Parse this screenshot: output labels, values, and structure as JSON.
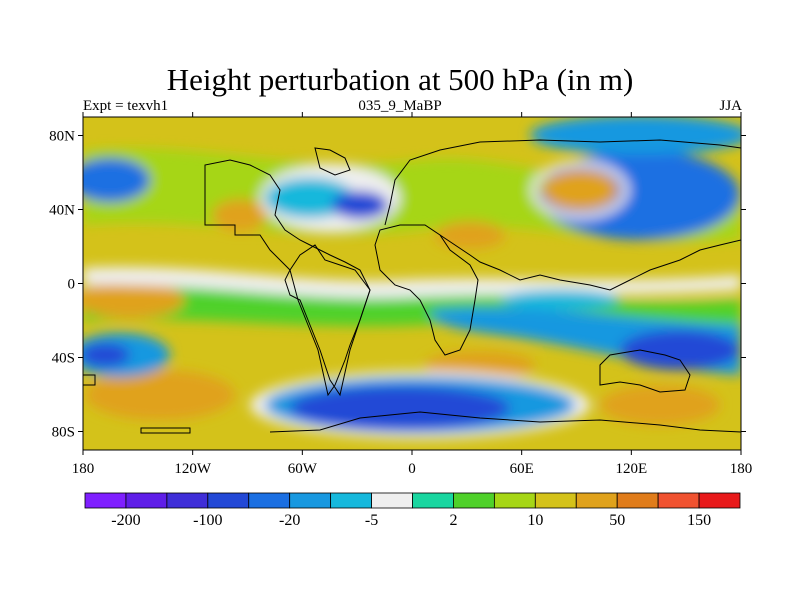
{
  "figure": {
    "title": "Height perturbation at 500 hPa (in m)",
    "left_label": "Expt = texvh1",
    "center_label": "035_9_MaBP",
    "right_label": "JJA"
  },
  "axes": {
    "lat_labels": [
      "80N",
      "40N",
      "0",
      "40S",
      "80S"
    ],
    "lon_labels": [
      "180",
      "120W",
      "60W",
      "0",
      "60E",
      "120E",
      "180"
    ]
  },
  "colorbar": {
    "colors": [
      "#7f1fff",
      "#5f1ee8",
      "#3f2ed8",
      "#2248d6",
      "#1b6fe2",
      "#1898e0",
      "#16b8dc",
      "#efefef",
      "#19d6a0",
      "#4fd12a",
      "#a6d616",
      "#d4c21a",
      "#e0a21c",
      "#e07c1a",
      "#f05230",
      "#e8191a"
    ],
    "labels": [
      "-200",
      "-100",
      "-20",
      "-5",
      "2",
      "10",
      "50",
      "150"
    ]
  },
  "chart_data": {
    "type": "heatmap",
    "title": "Height perturbation at 500 hPa (in m)",
    "subtitle": "035_9_MaBP",
    "x_ticks": [
      "180",
      "120W",
      "60W",
      "0",
      "60E",
      "120E",
      "180"
    ],
    "y_ticks": [
      "80N",
      "40N",
      "0",
      "40S",
      "80S"
    ],
    "x_range_deg": [
      -180,
      180
    ],
    "y_range_deg": [
      -90,
      90
    ],
    "colorbar_labels": [
      "-200",
      "-100",
      "-20",
      "-5",
      "2",
      "10",
      "50",
      "150"
    ]
  }
}
